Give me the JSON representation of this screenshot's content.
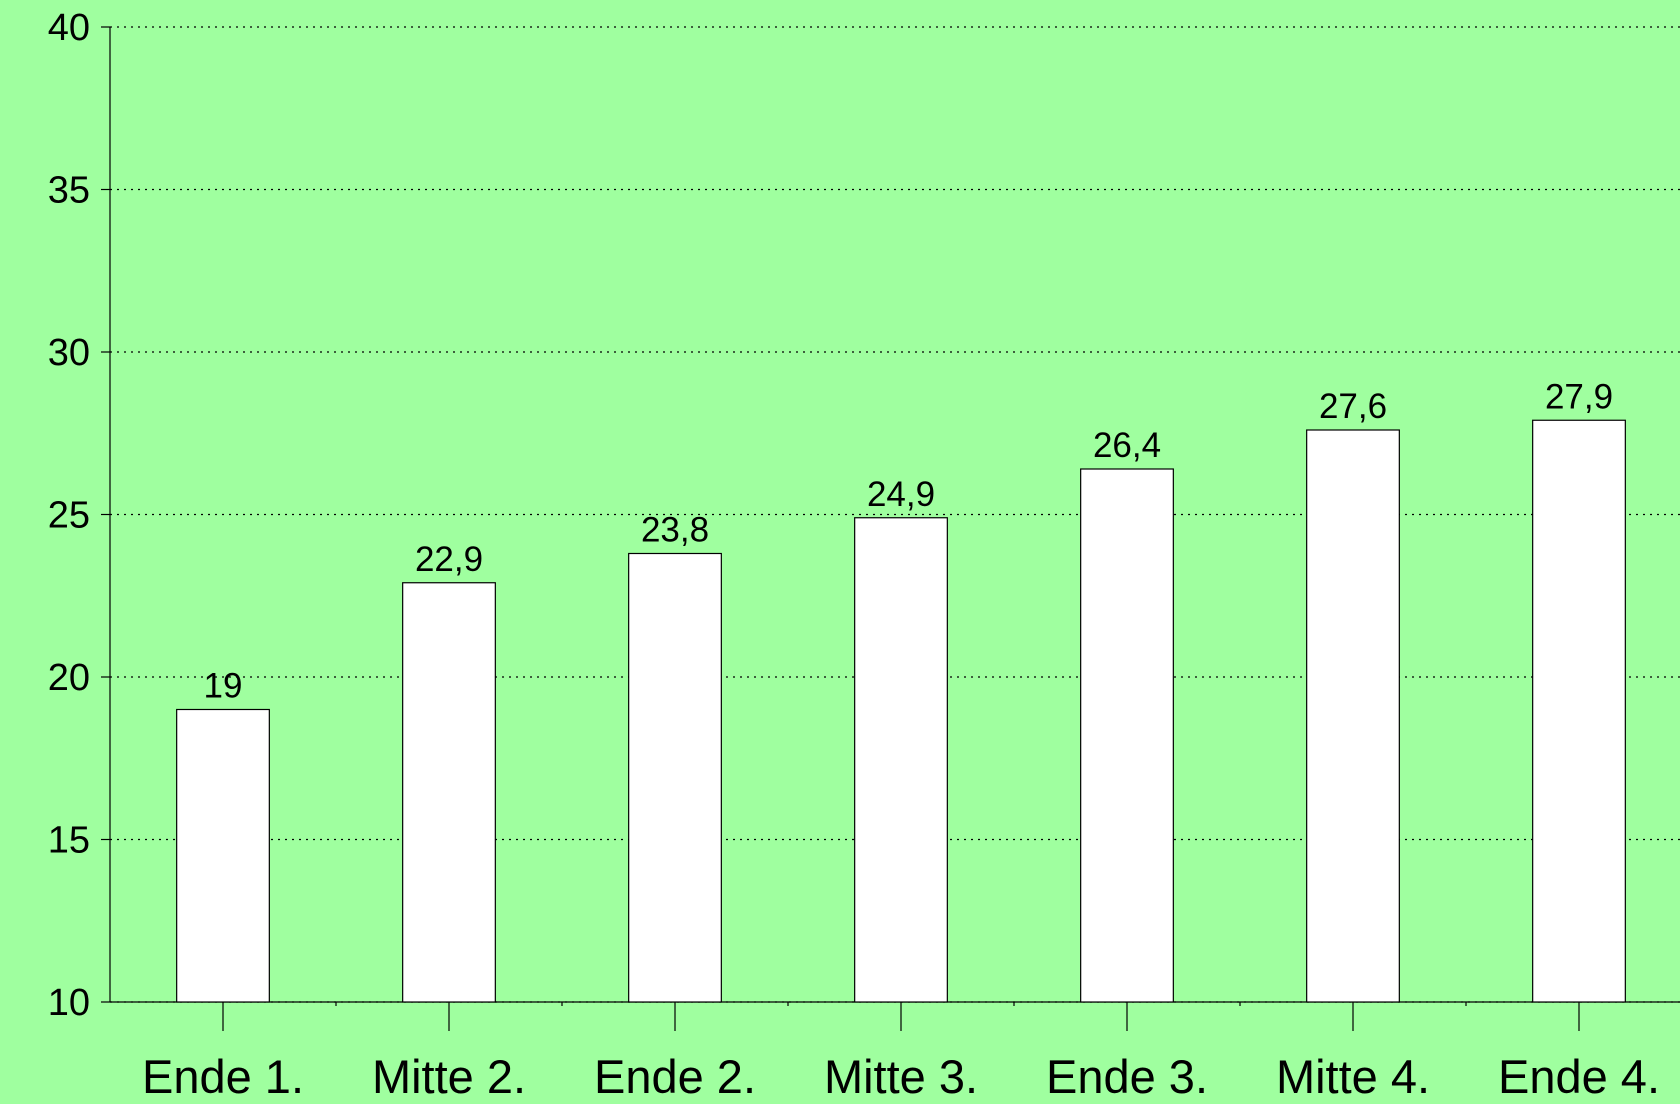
{
  "chart_data": {
    "type": "bar",
    "categories": [
      "Ende 1.",
      "Mitte 2.",
      "Ende 2.",
      "Mitte 3.",
      "Ende 3.",
      "Mitte 4.",
      "Ende 4."
    ],
    "values": [
      19,
      22.9,
      23.8,
      24.9,
      26.4,
      27.6,
      27.9
    ],
    "value_labels": [
      "19",
      "22,9",
      "23,8",
      "24,9",
      "26,4",
      "27,6",
      "27,9"
    ],
    "color": "#ffffff",
    "ylim": [
      10,
      40
    ],
    "yticks": [
      10,
      15,
      20,
      25,
      30,
      35,
      40
    ],
    "grid": true
  }
}
